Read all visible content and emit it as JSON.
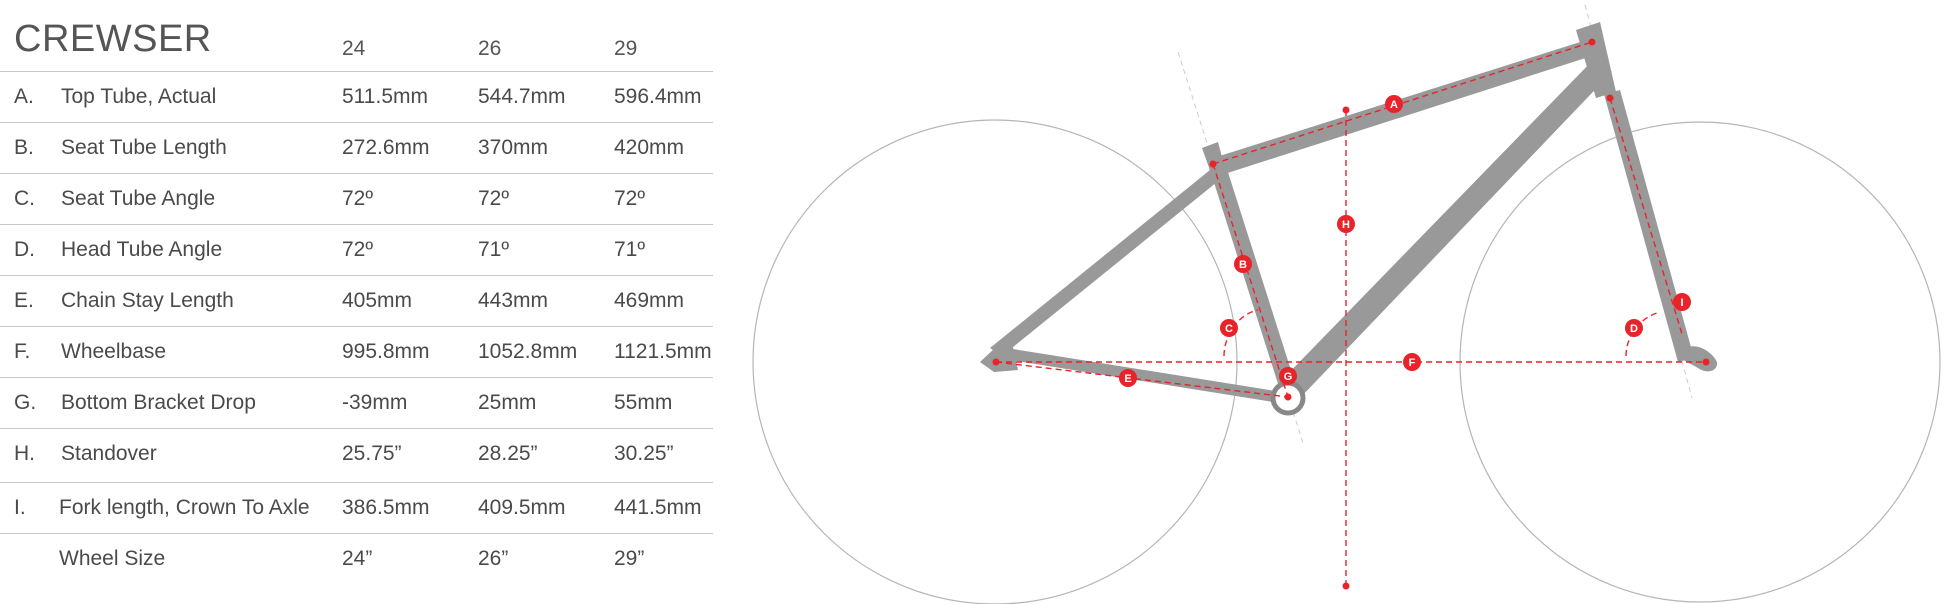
{
  "table": {
    "title": "CREWSER",
    "sizes": [
      "24",
      "26",
      "29"
    ],
    "rows": [
      {
        "letter": "A.",
        "name": "Top Tube, Actual",
        "values": [
          "511.5mm",
          "544.7mm",
          "596.4mm"
        ]
      },
      {
        "letter": "B.",
        "name": "Seat Tube Length",
        "values": [
          "272.6mm",
          "370mm",
          "420mm"
        ]
      },
      {
        "letter": "C.",
        "name": "Seat Tube Angle",
        "values": [
          "72º",
          "72º",
          "72º"
        ]
      },
      {
        "letter": "D.",
        "name": "Head Tube Angle",
        "values": [
          "72º",
          "71º",
          "71º"
        ]
      },
      {
        "letter": "E.",
        "name": "Chain Stay Length",
        "values": [
          "405mm",
          "443mm",
          "469mm"
        ]
      },
      {
        "letter": "F.",
        "name": "Wheelbase",
        "values": [
          "995.8mm",
          "1052.8mm",
          "1121.5mm"
        ]
      },
      {
        "letter": "G.",
        "name": "Bottom Bracket Drop",
        "values": [
          "-39mm",
          "25mm",
          "55mm"
        ]
      },
      {
        "letter": "H.",
        "name": "Standover",
        "values": [
          "25.75”",
          "28.25”",
          "30.25”"
        ]
      },
      {
        "letter": "I.",
        "name": "Fork length, Crown To Axle",
        "values": [
          "386.5mm",
          "409.5mm",
          "441.5mm"
        ]
      },
      {
        "letter": "",
        "name": "Wheel Size",
        "values": [
          "24”",
          "26”",
          "29”"
        ]
      }
    ]
  },
  "diagram": {
    "badges": [
      "A",
      "B",
      "C",
      "D",
      "E",
      "F",
      "G",
      "H",
      "I"
    ],
    "colors": {
      "frame": "#999999",
      "measure": "#e8232a",
      "wheel": "#b5b5b5",
      "text": "#4a4a4a"
    }
  }
}
